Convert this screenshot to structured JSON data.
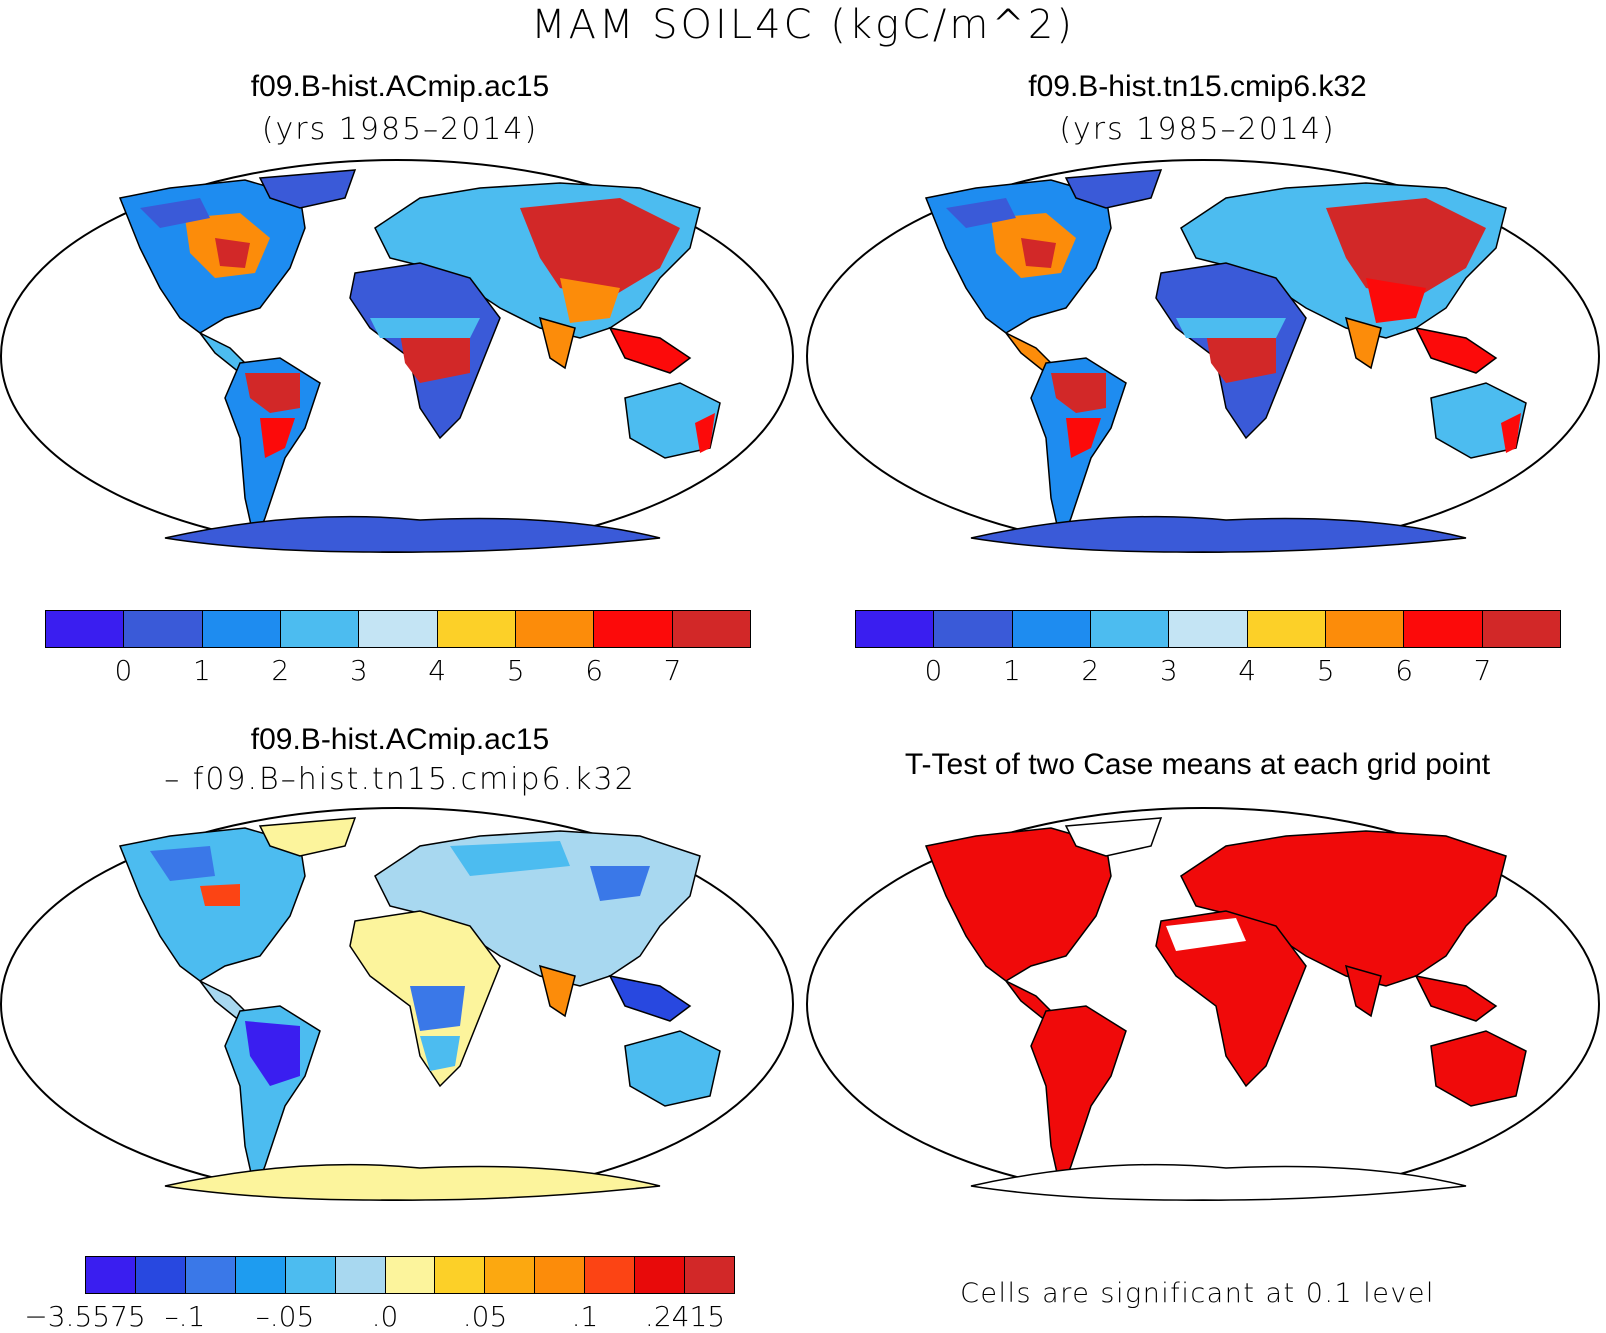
{
  "figure": {
    "title": "MAM SOIL4C (kgC/m^2)"
  },
  "panels": {
    "top_left": {
      "title": "f09.B-hist.ACmip.ac15",
      "subtitle": "(yrs 1985–2014)"
    },
    "top_right": {
      "title": "f09.B-hist.tn15.cmip6.k32",
      "subtitle": "(yrs 1985–2014)"
    },
    "bottom_left": {
      "title": "f09.B-hist.ACmip.ac15",
      "subtitle": "– f09.B–hist.tn15.cmip6.k32"
    },
    "bottom_right": {
      "title": "T-Test of two Case means at each grid point",
      "note": "Cells are significant at 0.1 level"
    }
  },
  "colorbars": {
    "absolute": {
      "ticks": [
        "0",
        "1",
        "2",
        "3",
        "4",
        "5",
        "6",
        "7"
      ],
      "colors": [
        "#3a1ef0",
        "#3a5ad8",
        "#1e8cf0",
        "#4cbcf0",
        "#c4e4f4",
        "#fcd028",
        "#fc8c0a",
        "#fc0a0a",
        "#d22828"
      ]
    },
    "difference": {
      "ticks": [
        "−3.5575",
        "–.1",
        "–.05",
        ".0",
        ".05",
        ".1",
        ".2415"
      ],
      "colors": [
        "#3a1ef0",
        "#2848e0",
        "#3a78e8",
        "#1e9cf0",
        "#4cbcf0",
        "#a8d8f0",
        "#fcf49c",
        "#fcd028",
        "#fca810",
        "#fc8c0a",
        "#fc4414",
        "#e80a0a",
        "#d22828"
      ]
    }
  },
  "significance": {
    "color": "#f00a0a"
  }
}
